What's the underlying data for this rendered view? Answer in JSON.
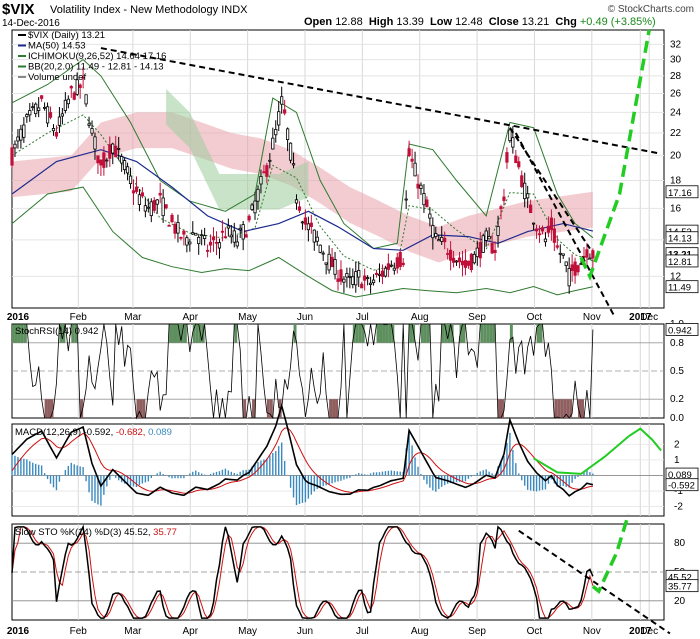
{
  "header": {
    "symbol": "$VIX",
    "name": "Volatility Index - New Methodology",
    "exchange": "INDX",
    "date": "14-Dec-2016",
    "brand": "© StockCharts.com",
    "open_label": "Open",
    "open": "12.88",
    "high_label": "High",
    "high": "13.39",
    "low_label": "Low",
    "low": "12.48",
    "close_label": "Close",
    "close": "13.21",
    "chg_label": "Chg",
    "chg": "+0.49 (+3.85%)"
  },
  "chart_data": [
    {
      "panel": "price",
      "type": "candlestick",
      "legend": {
        "price": "$VIX (Daily) 13.21",
        "ma": "MA(50) 14.53",
        "ichimoku": "ICHIMOKU(9,26,52) 14.64 17.16",
        "bb": "BB(20,2.0) 11.49 - 12.81 - 14.13",
        "volume": "Volume undef"
      },
      "ylim": [
        10.5,
        34
      ],
      "y_axis_scale": "log",
      "ticks": [
        12,
        14,
        16,
        18,
        20,
        22,
        24,
        26,
        28,
        30,
        32
      ],
      "value_tags": [
        {
          "label": "17.16",
          "value": 17.16
        },
        {
          "label": "14.53",
          "value": 14.53
        },
        {
          "label": "14.13",
          "value": 14.13
        },
        {
          "label": "13.21",
          "value": 13.21,
          "bold": true
        },
        {
          "label": "12.81",
          "value": 12.81
        },
        {
          "label": "11.49",
          "value": 11.49
        }
      ],
      "x_labels": [
        "2016",
        "Feb",
        "Mar",
        "Apr",
        "May",
        "Jun",
        "Jul",
        "Aug",
        "Sep",
        "Oct",
        "Nov",
        "Dec",
        "2017"
      ],
      "price_path": [
        [
          0,
          20
        ],
        [
          5,
          23
        ],
        [
          10,
          25
        ],
        [
          15,
          22
        ],
        [
          20,
          26
        ],
        [
          24,
          27
        ],
        [
          27,
          22
        ],
        [
          30,
          19
        ],
        [
          34,
          21
        ],
        [
          38,
          19
        ],
        [
          42,
          17
        ],
        [
          46,
          16
        ],
        [
          50,
          16.5
        ],
        [
          54,
          15
        ],
        [
          58,
          14
        ],
        [
          62,
          14.5
        ],
        [
          66,
          13.5
        ],
        [
          70,
          14
        ],
        [
          72,
          14.5
        ],
        [
          76,
          14
        ],
        [
          80,
          15
        ],
        [
          83,
          17
        ],
        [
          86,
          19
        ],
        [
          89,
          22
        ],
        [
          91,
          25
        ],
        [
          93,
          22
        ],
        [
          96,
          17
        ],
        [
          99,
          15
        ],
        [
          103,
          14
        ],
        [
          107,
          12.8
        ],
        [
          111,
          12
        ],
        [
          114,
          11.7
        ],
        [
          117,
          12
        ],
        [
          120,
          11.6
        ],
        [
          124,
          12
        ],
        [
          128,
          12.7
        ],
        [
          132,
          13
        ],
        [
          134,
          20
        ],
        [
          137,
          18
        ],
        [
          140,
          16
        ],
        [
          143,
          14
        ],
        [
          147,
          13.5
        ],
        [
          150,
          13
        ],
        [
          153,
          12.5
        ],
        [
          156,
          13
        ],
        [
          160,
          14
        ],
        [
          163,
          13.5
        ],
        [
          166,
          17
        ],
        [
          168,
          22
        ],
        [
          171,
          19
        ],
        [
          174,
          16.5
        ],
        [
          177,
          15
        ],
        [
          180,
          14
        ],
        [
          182,
          14.8
        ],
        [
          184,
          13.5
        ],
        [
          186,
          13
        ],
        [
          188,
          12
        ],
        [
          190,
          12.5
        ],
        [
          192,
          12.8
        ],
        [
          194,
          13.5
        ],
        [
          196,
          13.21
        ]
      ],
      "ma50_path": [
        [
          0,
          17
        ],
        [
          15,
          19.5
        ],
        [
          30,
          20.5
        ],
        [
          42,
          19.5
        ],
        [
          54,
          17.5
        ],
        [
          66,
          15.5
        ],
        [
          78,
          14.5
        ],
        [
          90,
          15
        ],
        [
          100,
          15.8
        ],
        [
          110,
          14.8
        ],
        [
          122,
          13.5
        ],
        [
          132,
          13.4
        ],
        [
          142,
          14.3
        ],
        [
          154,
          14.2
        ],
        [
          164,
          13.8
        ],
        [
          174,
          14.5
        ],
        [
          186,
          15
        ],
        [
          196,
          14.53
        ]
      ],
      "bb_upper": [
        [
          0,
          25
        ],
        [
          12,
          27
        ],
        [
          24,
          30
        ],
        [
          30,
          28
        ],
        [
          40,
          23
        ],
        [
          50,
          18
        ],
        [
          60,
          16.5
        ],
        [
          72,
          15.8
        ],
        [
          82,
          17
        ],
        [
          88,
          25.5
        ],
        [
          96,
          24
        ],
        [
          104,
          18
        ],
        [
          112,
          15
        ],
        [
          122,
          13.5
        ],
        [
          130,
          13.8
        ],
        [
          134,
          21
        ],
        [
          142,
          20.5
        ],
        [
          150,
          18
        ],
        [
          160,
          15.5
        ],
        [
          168,
          23
        ],
        [
          176,
          22.5
        ],
        [
          184,
          17
        ],
        [
          190,
          15
        ],
        [
          196,
          14.13
        ]
      ],
      "bb_lower": [
        [
          0,
          15
        ],
        [
          12,
          17
        ],
        [
          24,
          17.5
        ],
        [
          34,
          14.5
        ],
        [
          44,
          13
        ],
        [
          54,
          12.5
        ],
        [
          64,
          12.2
        ],
        [
          72,
          12.4
        ],
        [
          80,
          12.3
        ],
        [
          90,
          13
        ],
        [
          100,
          12
        ],
        [
          108,
          11.3
        ],
        [
          116,
          11
        ],
        [
          124,
          11.2
        ],
        [
          132,
          11.4
        ],
        [
          140,
          11.3
        ],
        [
          150,
          11.2
        ],
        [
          160,
          11.4
        ],
        [
          168,
          11.2
        ],
        [
          176,
          11.5
        ],
        [
          184,
          11.1
        ],
        [
          190,
          11.3
        ],
        [
          196,
          11.49
        ]
      ],
      "cloud_bullish": [
        [
          52,
          26.5
        ],
        [
          60,
          24
        ],
        [
          70,
          18.5
        ],
        [
          90,
          18.5
        ],
        [
          100,
          19.5
        ]
      ],
      "cloud_bearish": [
        [
          0,
          19.5
        ],
        [
          20,
          20
        ],
        [
          30,
          23
        ],
        [
          42,
          24
        ],
        [
          54,
          24
        ],
        [
          64,
          23
        ],
        [
          74,
          22
        ],
        [
          84,
          21.5
        ],
        [
          94,
          20.5
        ],
        [
          104,
          19
        ],
        [
          114,
          17.5
        ],
        [
          124,
          16.5
        ],
        [
          134,
          15.5
        ],
        [
          144,
          14.8
        ],
        [
          154,
          15.5
        ],
        [
          164,
          16
        ],
        [
          174,
          16.5
        ],
        [
          184,
          16.8
        ],
        [
          196,
          17.16
        ]
      ],
      "annotations": [
        {
          "type": "trendline",
          "color": "#000000",
          "dashed": true,
          "from": [
            30,
            31.5
          ],
          "to": [
            218,
            20.2
          ]
        },
        {
          "type": "trendline",
          "color": "#000000",
          "dashed": true,
          "from": [
            168,
            22.5
          ],
          "to": [
            195,
            13.5
          ]
        },
        {
          "type": "trendline",
          "color": "#000000",
          "dashed": true,
          "from": [
            170,
            22
          ],
          "to": [
            203,
            10.2
          ]
        },
        {
          "type": "arrow",
          "color": "#22cc22",
          "dashed": true,
          "points": [
            [
              192,
              13
            ],
            [
              195,
              12
            ],
            [
              205,
              17
            ],
            [
              215,
              34
            ]
          ]
        }
      ]
    },
    {
      "panel": "stochrsi",
      "type": "line",
      "legend": "StochRSI(14) 0.942",
      "ylim": [
        0,
        1
      ],
      "ticks": [
        0.0,
        0.2,
        0.5,
        0.8,
        1.0
      ],
      "tick_labels": [
        "0.0",
        "0.2",
        "0.5",
        "0.8",
        "1.0"
      ],
      "value_tag": {
        "label": "0.942",
        "value": 0.942
      }
    },
    {
      "panel": "macd",
      "type": "line",
      "legend_prefix": "MACD(12,26,9)",
      "legend_values": [
        "-0.592",
        "-0.682",
        "0.089"
      ],
      "ylim": [
        -2.6,
        3.3
      ],
      "ticks": [
        -2,
        -1,
        0,
        1,
        2
      ],
      "tick_labels": [
        "-2",
        "-1",
        "0",
        "1",
        "2"
      ],
      "value_tags": [
        {
          "label": "0.089",
          "value": 0.089
        },
        {
          "label": "-0.592",
          "value": -0.592
        }
      ],
      "annotations": [
        {
          "type": "curve",
          "color": "#22cc22",
          "points": [
            [
              176,
              1.1
            ],
            [
              184,
              0.2
            ],
            [
              192,
              0.1
            ],
            [
              200,
              1.2
            ],
            [
              208,
              2.5
            ]
          ]
        },
        {
          "type": "curve",
          "color": "#22cc22",
          "points": [
            [
              208,
              2.5
            ],
            [
              212,
              3.0
            ],
            [
              216,
              2.3
            ],
            [
              219,
              1.6
            ]
          ]
        }
      ]
    },
    {
      "panel": "slowsto",
      "type": "line",
      "legend_prefix": "Slow STO %K(14) %D(3)",
      "legend_values": [
        "45.52",
        "35.77"
      ],
      "ylim": [
        0,
        100
      ],
      "ticks": [
        20,
        50,
        80
      ],
      "tick_labels": [
        "20",
        "50",
        "80"
      ],
      "value_tags": [
        {
          "label": "45.52",
          "value": 45.52
        },
        {
          "label": "35.77",
          "value": 35.77
        }
      ],
      "annotations": [
        {
          "type": "trendline",
          "color": "#000000",
          "dashed": true,
          "from": [
            171,
            93
          ],
          "to": [
            222,
            -14
          ]
        },
        {
          "type": "arrow",
          "color": "#22cc22",
          "dashed": true,
          "points": [
            [
              196,
              35
            ],
            [
              198,
              30
            ],
            [
              204,
              70
            ],
            [
              208,
              110
            ]
          ]
        }
      ]
    }
  ]
}
